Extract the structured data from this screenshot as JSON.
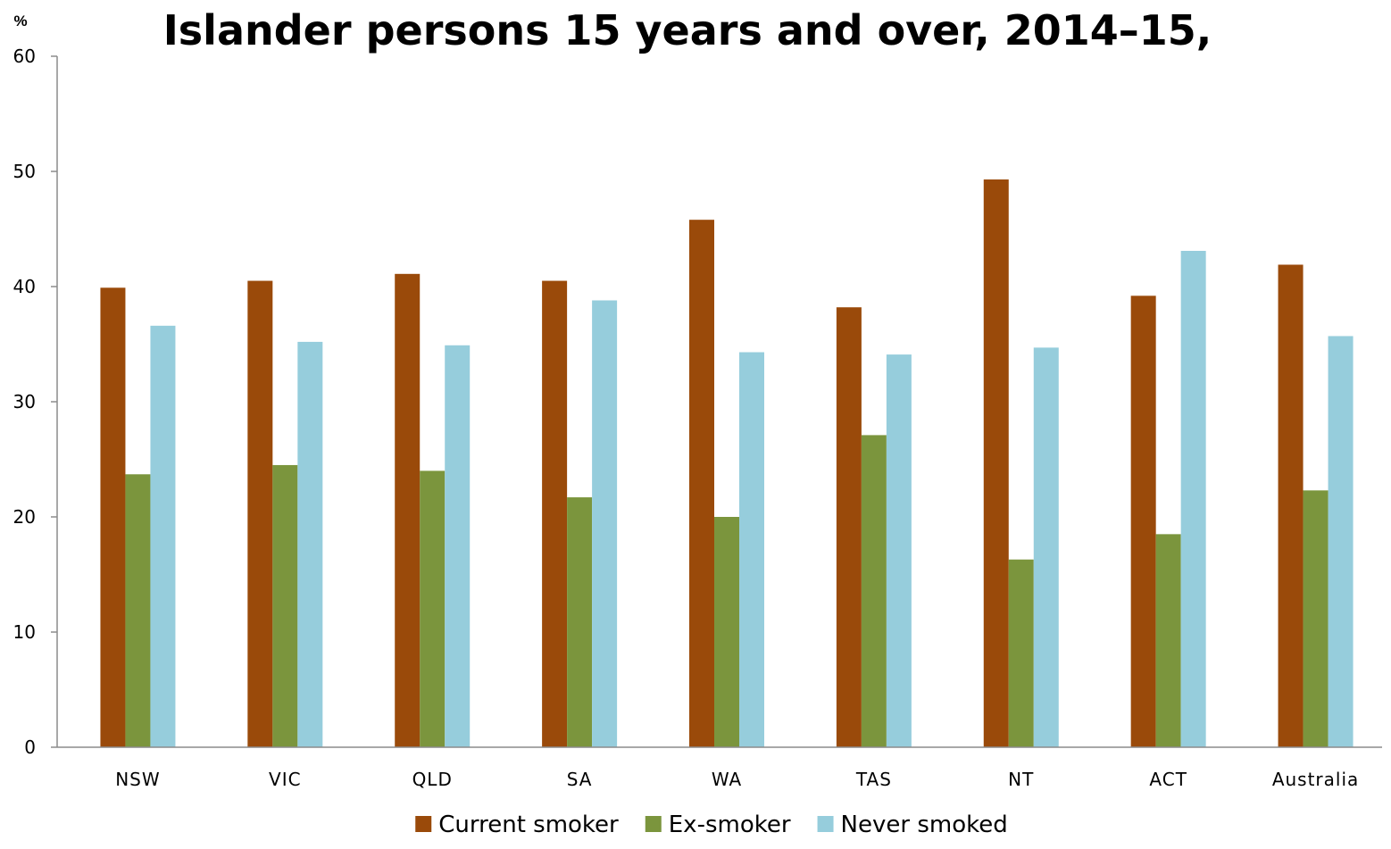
{
  "chart_data": {
    "type": "bar",
    "title": "Islander persons 15 years and over, 2014–15,",
    "ylabel": "%",
    "ylim": [
      0,
      60
    ],
    "yticks": [
      "0",
      "10",
      "20",
      "30",
      "40",
      "50",
      "60"
    ],
    "grid": false,
    "legend_position": "bottom",
    "categories": [
      "NSW",
      "VIC",
      "QLD",
      "SA",
      "WA",
      "TAS",
      "NT",
      "ACT",
      "Australia"
    ],
    "series": [
      {
        "name": "Current smoker",
        "color": "#9a4a0a",
        "values": [
          39.9,
          40.5,
          41.1,
          40.5,
          45.8,
          38.2,
          49.3,
          39.2,
          41.9
        ]
      },
      {
        "name": "Ex-smoker",
        "color": "#7b953d",
        "values": [
          23.7,
          24.5,
          24.0,
          21.7,
          20.0,
          27.1,
          16.3,
          18.5,
          22.3
        ]
      },
      {
        "name": "Never smoked",
        "color": "#96cddc",
        "values": [
          36.6,
          35.2,
          34.9,
          38.8,
          34.3,
          34.1,
          34.7,
          43.1,
          35.7
        ]
      }
    ]
  }
}
